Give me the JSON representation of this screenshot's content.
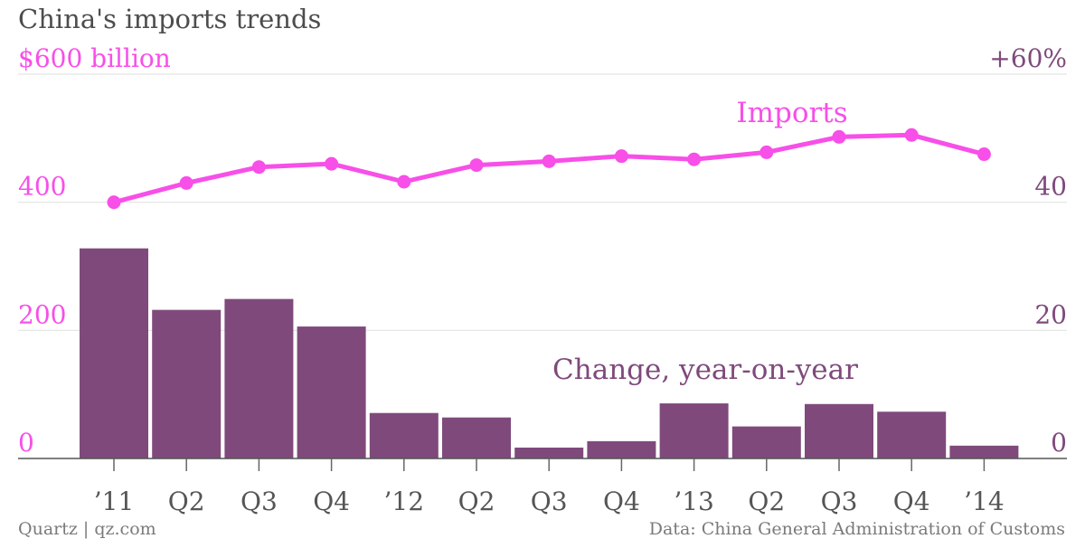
{
  "chart_data": {
    "type": "bar+line",
    "title": "China's imports trends",
    "categories": [
      "’11",
      "Q2",
      "Q3",
      "Q4",
      "’12",
      "Q2",
      "Q3",
      "Q4",
      "’13",
      "Q2",
      "Q3",
      "Q4",
      "’14"
    ],
    "series": [
      {
        "name": "Imports",
        "type": "line",
        "axis": "left",
        "color": "#f74fe8",
        "values": [
          400,
          430,
          455,
          460,
          432,
          458,
          464,
          472,
          467,
          478,
          502,
          505,
          475
        ]
      },
      {
        "name": "Change, year-on-year",
        "type": "bar",
        "axis": "right",
        "color": "#7f4a7b",
        "values": [
          32.8,
          23.2,
          24.9,
          20.6,
          7.1,
          6.4,
          1.7,
          2.7,
          8.6,
          5.0,
          8.5,
          7.3,
          2.0
        ]
      }
    ],
    "left_axis": {
      "min": 0,
      "max": 600,
      "ticks": [
        0,
        200,
        400,
        600
      ],
      "tick_labels": [
        "0",
        "200",
        "400",
        "$600 billion"
      ],
      "color": "#f74fe8"
    },
    "right_axis": {
      "min": 0,
      "max": 60,
      "ticks": [
        0,
        20,
        40,
        60
      ],
      "tick_labels": [
        "0",
        "20",
        "40",
        "+60%"
      ],
      "color": "#7f4a7b"
    },
    "grid": true,
    "source": "Quartz | qz.com",
    "credit": "Data: China General Administration of Customs"
  }
}
